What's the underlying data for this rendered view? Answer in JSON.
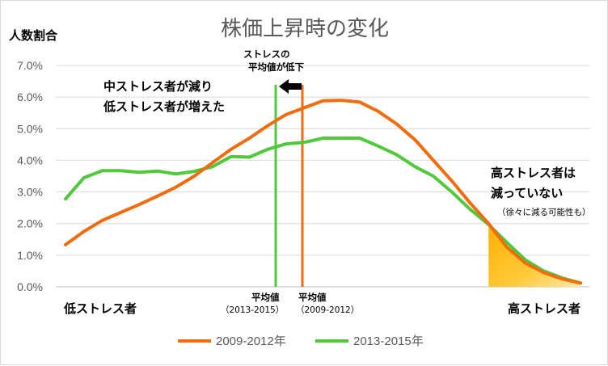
{
  "chart_data": {
    "type": "line",
    "title": "株価上昇時の変化",
    "ylabel": "人数割合",
    "xlabel_left": "低ストレス者",
    "xlabel_right": "高ストレス者",
    "ylim": [
      0,
      7
    ],
    "y_ticks": [
      "0.0%",
      "1.0%",
      "2.0%",
      "3.0%",
      "4.0%",
      "5.0%",
      "6.0%",
      "7.0%"
    ],
    "grid": true,
    "legend_position": "bottom",
    "series": [
      {
        "name": "2009-2012年",
        "color": "#f26b0f",
        "values": [
          1.33,
          1.75,
          2.1,
          2.35,
          2.6,
          2.87,
          3.15,
          3.5,
          3.93,
          4.35,
          4.7,
          5.1,
          5.45,
          5.67,
          5.88,
          5.9,
          5.84,
          5.55,
          5.15,
          4.65,
          4.0,
          3.35,
          2.65,
          2.0,
          1.25,
          0.75,
          0.45,
          0.25,
          0.12
        ]
      },
      {
        "name": "2013-2015年",
        "color": "#4ec93a",
        "values": [
          2.78,
          3.45,
          3.67,
          3.67,
          3.62,
          3.66,
          3.57,
          3.65,
          3.8,
          4.12,
          4.1,
          4.35,
          4.52,
          4.57,
          4.7,
          4.7,
          4.7,
          4.45,
          4.18,
          3.8,
          3.5,
          3.0,
          2.45,
          1.97,
          1.4,
          0.85,
          0.5,
          0.28,
          0.12
        ]
      }
    ],
    "annotations": {
      "left_note": [
        "中ストレス者が減り",
        "低ストレス者が増えた"
      ],
      "top_note": [
        "ストレスの",
        "平均値が低下"
      ],
      "right_note": [
        "高ストレス者は",
        "減っていない"
      ],
      "right_note_sub": "（徐々に減る可能性も）",
      "avg_green_label": [
        "平均値",
        "（2013-2015）"
      ],
      "avg_orange_label": [
        "平均値",
        "（2009-2012）"
      ]
    }
  }
}
